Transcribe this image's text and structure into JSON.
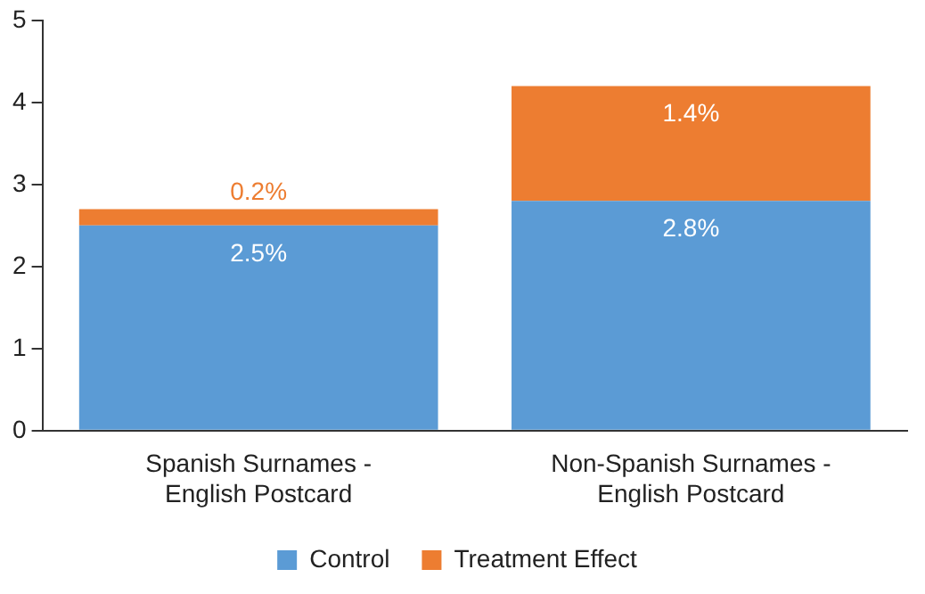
{
  "chart_data": {
    "type": "bar",
    "stacked": true,
    "categories": [
      "Spanish Surnames -\nEnglish Postcard",
      "Non-Spanish Surnames -\nEnglish Postcard"
    ],
    "series": [
      {
        "name": "Control",
        "color": "#5b9bd5",
        "values": [
          2.5,
          2.8
        ],
        "value_labels": [
          "2.5%",
          "2.8%"
        ]
      },
      {
        "name": "Treatment Effect",
        "color": "#ed7d31",
        "values": [
          0.2,
          1.4
        ],
        "value_labels": [
          "0.2%",
          "1.4%"
        ]
      }
    ],
    "ylim": [
      0,
      5
    ],
    "yticks": [
      0,
      1,
      2,
      3,
      4,
      5
    ],
    "grid": false,
    "legend": "bottom"
  }
}
